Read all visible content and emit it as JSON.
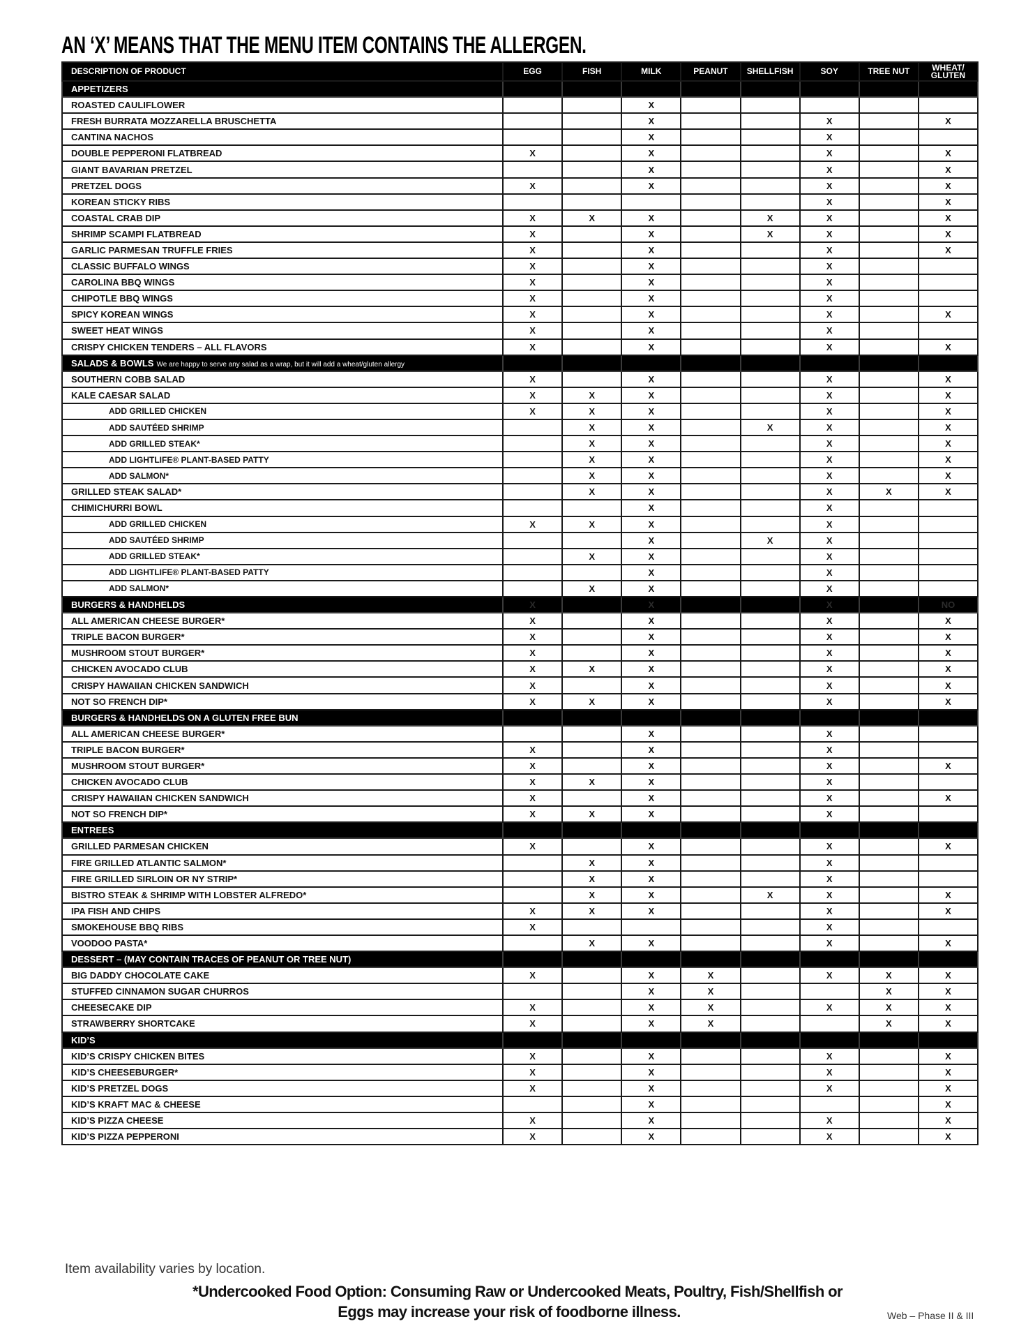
{
  "title": "AN ‘X’ MEANS THAT THE MENU ITEM CONTAINS THE ALLERGEN.",
  "columns": [
    "DESCRIPTION OF PRODUCT",
    "EGG",
    "FISH",
    "MILK",
    "PEANUT",
    "SHELLFISH",
    "SOY",
    "TREE NUT",
    "WHEAT/ GLUTEN"
  ],
  "sections": [
    {
      "title": "APPETIZERS",
      "items": [
        {
          "name": "ROASTED CAULIFLOWER",
          "allergens": [
            "",
            "",
            "X",
            "",
            "",
            "",
            "",
            ""
          ]
        },
        {
          "name": "FRESH BURRATA MOZZARELLA BRUSCHETTA",
          "allergens": [
            "",
            "",
            "X",
            "",
            "",
            "X",
            "",
            "X"
          ]
        },
        {
          "name": "CANTINA NACHOS",
          "allergens": [
            "",
            "",
            "X",
            "",
            "",
            "X",
            "",
            ""
          ]
        },
        {
          "name": "DOUBLE PEPPERONI FLATBREAD",
          "allergens": [
            "X",
            "",
            "X",
            "",
            "",
            "X",
            "",
            "X"
          ]
        },
        {
          "name": "GIANT BAVARIAN PRETZEL",
          "allergens": [
            "",
            "",
            "X",
            "",
            "",
            "X",
            "",
            "X"
          ]
        },
        {
          "name": "PRETZEL DOGS",
          "allergens": [
            "X",
            "",
            "X",
            "",
            "",
            "X",
            "",
            "X"
          ]
        },
        {
          "name": "KOREAN STICKY RIBS",
          "allergens": [
            "",
            "",
            "",
            "",
            "",
            "X",
            "",
            "X"
          ]
        },
        {
          "name": "COASTAL CRAB DIP",
          "allergens": [
            "X",
            "X",
            "X",
            "",
            "X",
            "X",
            "",
            "X"
          ]
        },
        {
          "name": "SHRIMP SCAMPI FLATBREAD",
          "allergens": [
            "X",
            "",
            "X",
            "",
            "X",
            "X",
            "",
            "X"
          ]
        },
        {
          "name": "GARLIC PARMESAN TRUFFLE FRIES",
          "allergens": [
            "X",
            "",
            "X",
            "",
            "",
            "X",
            "",
            "X"
          ]
        },
        {
          "name": "CLASSIC BUFFALO WINGS",
          "allergens": [
            "X",
            "",
            "X",
            "",
            "",
            "X",
            "",
            ""
          ]
        },
        {
          "name": "CAROLINA BBQ WINGS",
          "allergens": [
            "X",
            "",
            "X",
            "",
            "",
            "X",
            "",
            ""
          ]
        },
        {
          "name": "CHIPOTLE BBQ WINGS",
          "allergens": [
            "X",
            "",
            "X",
            "",
            "",
            "X",
            "",
            ""
          ]
        },
        {
          "name": "SPICY KOREAN WINGS",
          "allergens": [
            "X",
            "",
            "X",
            "",
            "",
            "X",
            "",
            "X"
          ]
        },
        {
          "name": "SWEET HEAT WINGS",
          "allergens": [
            "X",
            "",
            "X",
            "",
            "",
            "X",
            "",
            ""
          ]
        },
        {
          "name": "CRISPY CHICKEN TENDERS – ALL FLAVORS",
          "allergens": [
            "X",
            "",
            "X",
            "",
            "",
            "X",
            "",
            "X"
          ]
        }
      ]
    },
    {
      "title": "SALADS & BOWLS",
      "note": "We are happy to serve any salad as a wrap, but it will add a wheat/gluten allergy",
      "items": [
        {
          "name": "SOUTHERN COBB SALAD",
          "allergens": [
            "X",
            "",
            "X",
            "",
            "",
            "X",
            "",
            "X"
          ]
        },
        {
          "name": "KALE CAESAR SALAD",
          "allergens": [
            "X",
            "X",
            "X",
            "",
            "",
            "X",
            "",
            "X"
          ]
        },
        {
          "name": "ADD GRILLED CHICKEN",
          "add_on": true,
          "allergens": [
            "X",
            "X",
            "X",
            "",
            "",
            "X",
            "",
            "X"
          ]
        },
        {
          "name": "ADD SAUTÉED SHRIMP",
          "add_on": true,
          "allergens": [
            "",
            "X",
            "X",
            "",
            "X",
            "X",
            "",
            "X"
          ]
        },
        {
          "name": "ADD GRILLED STEAK*",
          "add_on": true,
          "allergens": [
            "",
            "X",
            "X",
            "",
            "",
            "X",
            "",
            "X"
          ]
        },
        {
          "name": "ADD LIGHTLIFE® PLANT-BASED PATTY",
          "add_on": true,
          "allergens": [
            "",
            "X",
            "X",
            "",
            "",
            "X",
            "",
            "X"
          ]
        },
        {
          "name": "ADD SALMON*",
          "add_on": true,
          "allergens": [
            "",
            "X",
            "X",
            "",
            "",
            "X",
            "",
            "X"
          ]
        },
        {
          "name": "GRILLED STEAK SALAD*",
          "allergens": [
            "",
            "X",
            "X",
            "",
            "",
            "X",
            "X",
            "X"
          ]
        },
        {
          "name": "CHIMICHURRI BOWL",
          "allergens": [
            "",
            "",
            "X",
            "",
            "",
            "X",
            "",
            ""
          ]
        },
        {
          "name": "ADD GRILLED CHICKEN",
          "add_on": true,
          "allergens": [
            "X",
            "X",
            "X",
            "",
            "",
            "X",
            "",
            ""
          ]
        },
        {
          "name": "ADD SAUTÉED SHRIMP",
          "add_on": true,
          "allergens": [
            "",
            "",
            "X",
            "",
            "X",
            "X",
            "",
            ""
          ]
        },
        {
          "name": "ADD GRILLED STEAK*",
          "add_on": true,
          "allergens": [
            "",
            "X",
            "X",
            "",
            "",
            "X",
            "",
            ""
          ]
        },
        {
          "name": "ADD LIGHTLIFE® PLANT-BASED PATTY",
          "add_on": true,
          "allergens": [
            "",
            "",
            "X",
            "",
            "",
            "X",
            "",
            ""
          ]
        },
        {
          "name": "ADD SALMON*",
          "add_on": true,
          "allergens": [
            "",
            "X",
            "X",
            "",
            "",
            "X",
            "",
            ""
          ]
        }
      ]
    },
    {
      "title": "BURGERS & HANDHELDS",
      "marks": [
        "X",
        "",
        "X",
        "",
        "",
        "X",
        "",
        "NO"
      ],
      "items": [
        {
          "name": "ALL AMERICAN CHEESE BURGER*",
          "allergens": [
            "X",
            "",
            "X",
            "",
            "",
            "X",
            "",
            "X"
          ]
        },
        {
          "name": "TRIPLE BACON BURGER*",
          "allergens": [
            "X",
            "",
            "X",
            "",
            "",
            "X",
            "",
            "X"
          ]
        },
        {
          "name": "MUSHROOM STOUT BURGER*",
          "allergens": [
            "X",
            "",
            "X",
            "",
            "",
            "X",
            "",
            "X"
          ]
        },
        {
          "name": "CHICKEN AVOCADO CLUB",
          "allergens": [
            "X",
            "X",
            "X",
            "",
            "",
            "X",
            "",
            "X"
          ]
        },
        {
          "name": "CRISPY HAWAIIAN CHICKEN SANDWICH",
          "allergens": [
            "X",
            "",
            "X",
            "",
            "",
            "X",
            "",
            "X"
          ]
        },
        {
          "name": "NOT SO FRENCH DIP*",
          "allergens": [
            "X",
            "X",
            "X",
            "",
            "",
            "X",
            "",
            "X"
          ]
        }
      ]
    },
    {
      "title": "BURGERS & HANDHELDS ON A  GLUTEN FREE BUN",
      "items": [
        {
          "name": "ALL AMERICAN CHEESE BURGER*",
          "allergens": [
            "",
            "",
            "X",
            "",
            "",
            "X",
            "",
            ""
          ]
        },
        {
          "name": "TRIPLE BACON BURGER*",
          "allergens": [
            "X",
            "",
            "X",
            "",
            "",
            "X",
            "",
            ""
          ]
        },
        {
          "name": "MUSHROOM STOUT BURGER*",
          "allergens": [
            "X",
            "",
            "X",
            "",
            "",
            "X",
            "",
            "X"
          ]
        },
        {
          "name": "CHICKEN AVOCADO CLUB",
          "allergens": [
            "X",
            "X",
            "X",
            "",
            "",
            "X",
            "",
            ""
          ]
        },
        {
          "name": "CRISPY HAWAIIAN CHICKEN SANDWICH",
          "allergens": [
            "X",
            "",
            "X",
            "",
            "",
            "X",
            "",
            "X"
          ]
        },
        {
          "name": "NOT SO FRENCH DIP*",
          "allergens": [
            "X",
            "X",
            "X",
            "",
            "",
            "X",
            "",
            ""
          ]
        }
      ]
    },
    {
      "title": "ENTREES",
      "items": [
        {
          "name": "GRILLED PARMESAN CHICKEN",
          "allergens": [
            "X",
            "",
            "X",
            "",
            "",
            "X",
            "",
            "X"
          ]
        },
        {
          "name": "FIRE GRILLED ATLANTIC SALMON*",
          "allergens": [
            "",
            "X",
            "X",
            "",
            "",
            "X",
            "",
            ""
          ]
        },
        {
          "name": "FIRE GRILLED SIRLOIN OR NY STRIP*",
          "allergens": [
            "",
            "X",
            "X",
            "",
            "",
            "X",
            "",
            ""
          ]
        },
        {
          "name": "BISTRO STEAK & SHRIMP WITH LOBSTER ALFREDO*",
          "allergens": [
            "",
            "X",
            "X",
            "",
            "X",
            "X",
            "",
            "X"
          ]
        },
        {
          "name": "IPA FISH AND CHIPS",
          "allergens": [
            "X",
            "X",
            "X",
            "",
            "",
            "X",
            "",
            "X"
          ]
        },
        {
          "name": "SMOKEHOUSE BBQ RIBS",
          "allergens": [
            "X",
            "",
            "",
            "",
            "",
            "X",
            "",
            ""
          ]
        },
        {
          "name": "VOODOO PASTA*",
          "allergens": [
            "",
            "X",
            "X",
            "",
            "",
            "X",
            "",
            "X"
          ]
        }
      ]
    },
    {
      "title": "DESSERT – (MAY CONTAIN TRACES OF PEANUT OR TREE NUT)",
      "items": [
        {
          "name": "BIG DADDY CHOCOLATE CAKE",
          "allergens": [
            "X",
            "",
            "X",
            "X",
            "",
            "X",
            "X",
            "X"
          ]
        },
        {
          "name": "STUFFED CINNAMON SUGAR CHURROS",
          "allergens": [
            "",
            "",
            "X",
            "X",
            "",
            "",
            "X",
            "X"
          ]
        },
        {
          "name": "CHEESECAKE DIP",
          "allergens": [
            "X",
            "",
            "X",
            "X",
            "",
            "X",
            "X",
            "X"
          ]
        },
        {
          "name": "STRAWBERRY SHORTCAKE",
          "allergens": [
            "X",
            "",
            "X",
            "X",
            "",
            "",
            "X",
            "X"
          ]
        }
      ]
    },
    {
      "title": "KID’S",
      "items": [
        {
          "name": "KID’S CRISPY CHICKEN BITES",
          "allergens": [
            "X",
            "",
            "X",
            "",
            "",
            "X",
            "",
            "X"
          ]
        },
        {
          "name": "KID’S CHEESEBURGER*",
          "allergens": [
            "X",
            "",
            "X",
            "",
            "",
            "X",
            "",
            "X"
          ]
        },
        {
          "name": "KID’S PRETZEL DOGS",
          "allergens": [
            "X",
            "",
            "X",
            "",
            "",
            "X",
            "",
            "X"
          ]
        },
        {
          "name": "KID’S KRAFT MAC & CHEESE",
          "allergens": [
            "",
            "",
            "X",
            "",
            "",
            "",
            "",
            "X"
          ]
        },
        {
          "name": "KID’S PIZZA CHEESE",
          "allergens": [
            "X",
            "",
            "X",
            "",
            "",
            "X",
            "",
            "X"
          ]
        },
        {
          "name": "KID’S PIZZA PEPPERONI",
          "allergens": [
            "X",
            "",
            "X",
            "",
            "",
            "X",
            "",
            "X"
          ]
        }
      ]
    }
  ],
  "footer": {
    "availability": "Item availability varies by location.",
    "warning_line1": "*Undercooked Food Option: Consuming Raw or Undercooked Meats, Poultry, Fish/Shellfish or",
    "warning_line2": "Eggs may increase your risk of foodborne illness.",
    "version": "Web – Phase II & III"
  }
}
